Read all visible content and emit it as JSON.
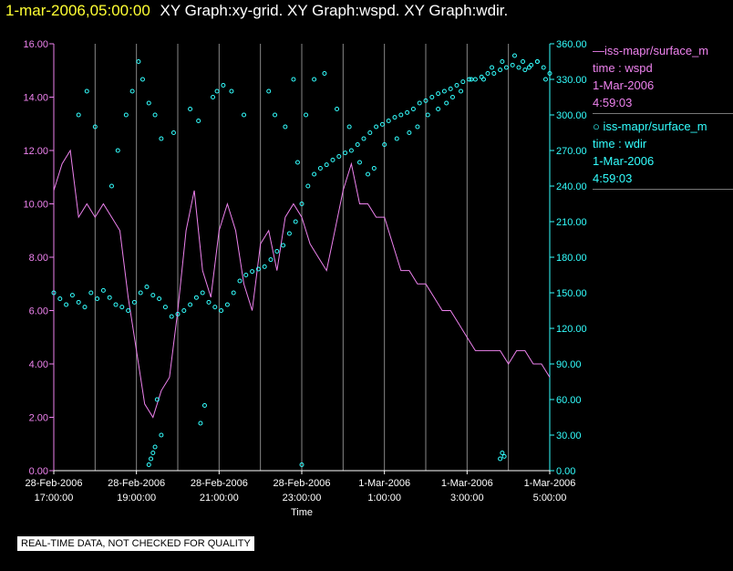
{
  "header": {
    "timestamp": "1-mar-2006,05:00:00",
    "graphs": "XY Graph:xy-grid.  XY Graph:wspd.  XY Graph:wdir."
  },
  "legend": {
    "wspd": {
      "name": "iss-mapr/surface_m",
      "var": "time : wspd",
      "date": "1-Mar-2006",
      "time": "4:59:03",
      "color": "#ee82ee"
    },
    "wdir": {
      "name": "iss-mapr/surface_m",
      "var": "time : wdir",
      "date": "1-Mar-2006",
      "time": "4:59:03",
      "color": "#33ffff"
    }
  },
  "footer": "REAL-TIME DATA, NOT CHECKED FOR QUALITY",
  "chart_data": {
    "type": "line",
    "xlabel": "Time",
    "x_tick_labels": [
      [
        "28-Feb-2006",
        "17:00:00"
      ],
      [
        "28-Feb-2006",
        "19:00:00"
      ],
      [
        "28-Feb-2006",
        "21:00:00"
      ],
      [
        "28-Feb-2006",
        "23:00:00"
      ],
      [
        "1-Mar-2006",
        "1:00:00"
      ],
      [
        "1-Mar-2006",
        "3:00:00"
      ],
      [
        "1-Mar-2006",
        "5:00:00"
      ]
    ],
    "x_range_hours": [
      17,
      29
    ],
    "vertical_grid_hours": [
      18,
      19,
      20,
      21,
      22,
      23,
      24,
      25,
      26,
      27,
      28
    ],
    "y_left": {
      "range": [
        0,
        16
      ],
      "ticks": [
        "0.00",
        "2.00",
        "4.00",
        "6.00",
        "8.00",
        "10.00",
        "12.00",
        "14.00",
        "16.00"
      ],
      "color": "#ee82ee"
    },
    "y_right": {
      "range": [
        0,
        360
      ],
      "ticks": [
        "0.00",
        "30.00",
        "60.00",
        "90.00",
        "120.00",
        "150.00",
        "180.00",
        "210.00",
        "240.00",
        "270.00",
        "300.00",
        "330.00",
        "360.00"
      ],
      "color": "#33ffff"
    },
    "series": [
      {
        "name": "wspd",
        "style": "line",
        "axis": "left",
        "color": "#ee82ee",
        "hours": [
          17.0,
          17.2,
          17.4,
          17.6,
          17.8,
          18.0,
          18.2,
          18.4,
          18.6,
          18.8,
          19.0,
          19.2,
          19.4,
          19.6,
          19.8,
          20.0,
          20.2,
          20.4,
          20.6,
          20.8,
          21.0,
          21.2,
          21.4,
          21.6,
          21.8,
          22.0,
          22.2,
          22.4,
          22.6,
          22.8,
          23.0,
          23.2,
          23.4,
          23.6,
          23.8,
          24.0,
          24.2,
          24.4,
          24.6,
          24.8,
          25.0,
          25.2,
          25.4,
          25.6,
          25.8,
          26.0,
          26.2,
          26.4,
          26.6,
          26.8,
          27.0,
          27.2,
          27.4,
          27.6,
          27.8,
          28.0,
          28.2,
          28.4,
          28.6,
          28.8,
          29.0
        ],
        "values": [
          10.5,
          11.5,
          12.0,
          9.5,
          10.0,
          9.5,
          10.0,
          9.5,
          9.0,
          6.5,
          4.5,
          2.5,
          2.0,
          3.0,
          3.5,
          6.0,
          9.0,
          10.5,
          7.5,
          6.5,
          9.0,
          10.0,
          9.0,
          7.0,
          6.0,
          8.5,
          9.0,
          7.5,
          9.5,
          10.0,
          9.5,
          8.5,
          8.0,
          7.5,
          9.0,
          10.5,
          11.5,
          10.0,
          10.0,
          9.5,
          9.5,
          8.5,
          7.5,
          7.5,
          7.0,
          7.0,
          6.5,
          6.0,
          6.0,
          5.5,
          5.0,
          4.5,
          4.5,
          4.5,
          4.5,
          4.0,
          4.5,
          4.5,
          4.0,
          4.0,
          3.5
        ]
      },
      {
        "name": "wdir",
        "style": "points",
        "axis": "right",
        "color": "#33ffff",
        "hours": [
          17.0,
          17.15,
          17.3,
          17.45,
          17.6,
          17.75,
          17.9,
          18.05,
          18.2,
          18.35,
          18.5,
          18.65,
          18.8,
          18.95,
          19.1,
          19.25,
          19.4,
          19.55,
          19.7,
          19.85,
          20.0,
          20.15,
          20.3,
          20.45,
          20.6,
          20.75,
          20.9,
          21.05,
          21.2,
          21.35,
          21.5,
          21.65,
          21.8,
          21.95,
          22.1,
          22.25,
          22.4,
          22.55,
          22.7,
          22.85,
          23.0,
          23.15,
          23.3,
          23.45,
          23.6,
          23.75,
          23.9,
          24.05,
          24.2,
          24.35,
          24.5,
          24.65,
          24.8,
          24.95,
          25.1,
          25.25,
          25.4,
          25.55,
          25.7,
          25.85,
          26.0,
          26.15,
          26.3,
          26.45,
          26.6,
          26.75,
          26.9,
          27.05,
          27.2,
          27.35,
          27.5,
          27.65,
          27.8,
          27.95,
          28.1,
          28.25,
          28.4,
          28.55,
          28.7,
          28.85,
          29.0,
          18.4,
          18.55,
          18.75,
          18.9,
          19.05,
          19.15,
          19.3,
          19.45,
          19.6,
          19.9,
          20.3,
          20.5,
          20.85,
          20.95,
          21.1,
          21.3,
          21.6,
          22.2,
          22.35,
          22.6,
          22.9,
          23.1,
          23.3,
          23.55,
          23.85,
          24.15,
          24.4,
          24.6,
          24.75,
          25.0,
          25.3,
          25.6,
          25.8,
          26.05,
          26.3,
          26.5,
          26.65,
          26.85,
          27.1,
          27.4,
          27.6,
          27.85,
          28.15,
          28.35,
          28.5,
          28.7,
          28.9,
          19.3,
          19.35,
          19.4,
          19.45,
          19.5,
          19.6,
          20.55,
          20.65,
          27.8,
          27.85,
          27.9,
          23.0,
          22.8,
          18.0,
          17.8,
          17.6
        ],
        "values": [
          150,
          145,
          140,
          148,
          142,
          138,
          150,
          145,
          152,
          146,
          140,
          138,
          135,
          142,
          150,
          155,
          148,
          145,
          138,
          130,
          132,
          135,
          140,
          146,
          150,
          142,
          138,
          135,
          140,
          150,
          160,
          165,
          168,
          170,
          172,
          178,
          185,
          190,
          200,
          210,
          225,
          240,
          250,
          255,
          258,
          262,
          265,
          268,
          270,
          275,
          280,
          285,
          290,
          292,
          295,
          298,
          300,
          302,
          305,
          310,
          312,
          315,
          318,
          320,
          322,
          325,
          328,
          330,
          330,
          332,
          335,
          335,
          338,
          340,
          342,
          340,
          338,
          342,
          345,
          340,
          335,
          240,
          270,
          300,
          320,
          345,
          330,
          310,
          300,
          280,
          285,
          305,
          295,
          315,
          320,
          325,
          320,
          300,
          320,
          300,
          290,
          260,
          300,
          330,
          335,
          305,
          290,
          260,
          250,
          255,
          275,
          280,
          285,
          290,
          300,
          305,
          310,
          315,
          320,
          330,
          330,
          340,
          345,
          350,
          345,
          340,
          345,
          330,
          5,
          10,
          15,
          20,
          60,
          30,
          40,
          55,
          10,
          15,
          12,
          5,
          330,
          290,
          320,
          300
        ]
      }
    ]
  }
}
